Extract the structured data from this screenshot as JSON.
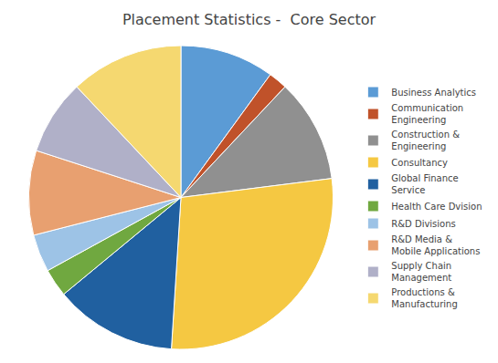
{
  "chart_data": {
    "type": "pie",
    "title": "Placement Statistics -  Core Sector",
    "categories": [
      "Business Analytics",
      "Communication\nEngineering",
      "Construction &\nEngineering",
      "Consultancy",
      "Global Finance\nService",
      "Health Care Dvision",
      "R&D Divisions",
      "R&D Media &\nMobile Applications",
      "Supply Chain\nManagement",
      "Productions &\nManufacturing"
    ],
    "values": [
      10,
      2,
      11,
      28,
      13,
      3,
      4,
      9,
      8,
      12
    ],
    "colors": [
      "#5B9BD5",
      "#C0522A",
      "#909090",
      "#F5C842",
      "#2060A0",
      "#70A840",
      "#9DC3E6",
      "#E8A070",
      "#B0B0C8",
      "#F5D870"
    ],
    "legend": "right"
  }
}
